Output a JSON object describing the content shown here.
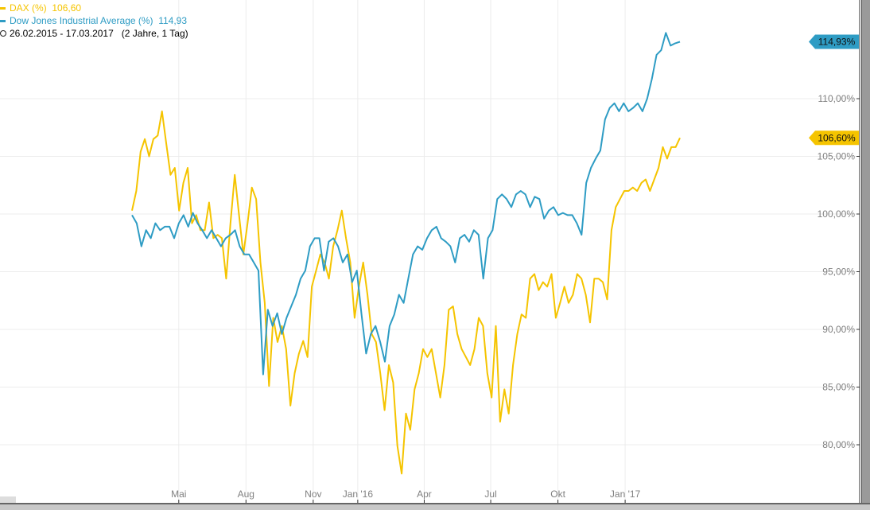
{
  "legend": {
    "dax_label": "DAX (%)",
    "dax_value": "106,60",
    "dow_label": "Dow Jones Industrial Average (%)",
    "dow_value": "114,93",
    "period": "26.02.2015 - 17.03.2017",
    "duration": "(2 Jahre, 1 Tag)"
  },
  "colors": {
    "dax": "#f5c400",
    "dow": "#2e9cc4",
    "grid": "#ececec",
    "axis_text": "#808080"
  },
  "chart_data": {
    "type": "line",
    "x_start": "2015-02-26",
    "x_end": "2017-03-17",
    "ylim": [
      75,
      118.5
    ],
    "grid": true,
    "legend_placement": "top-left",
    "x_ticks": [
      {
        "date": "2015-05-01",
        "label": "Mai"
      },
      {
        "date": "2015-08-01",
        "label": "Aug"
      },
      {
        "date": "2015-11-01",
        "label": "Nov"
      },
      {
        "date": "2016-01-01",
        "label": "Jan '16"
      },
      {
        "date": "2016-04-01",
        "label": "Apr"
      },
      {
        "date": "2016-07-01",
        "label": "Jul"
      },
      {
        "date": "2016-10-01",
        "label": "Okt"
      },
      {
        "date": "2017-01-01",
        "label": "Jan '17"
      }
    ],
    "y_ticks": [
      {
        "value": 80,
        "label": "80,00%"
      },
      {
        "value": 85,
        "label": "85,00%"
      },
      {
        "value": 90,
        "label": "90,00%"
      },
      {
        "value": 95,
        "label": "95,00%"
      },
      {
        "value": 100,
        "label": "100,00%"
      },
      {
        "value": 105,
        "label": "105,00%"
      },
      {
        "value": 110,
        "label": "110,00%"
      }
    ],
    "series": [
      {
        "name": "DAX (%)",
        "color": "#f5c400",
        "last_label": "106,60%",
        "values": [
          100.3,
          102,
          105.4,
          106.5,
          105,
          106.5,
          106.8,
          108.9,
          106.1,
          103.4,
          104,
          100.3,
          102.7,
          104,
          99.2,
          99.9,
          98.6,
          98.6,
          101,
          97.9,
          98.2,
          97.9,
          94.4,
          99.2,
          103.4,
          99.9,
          96.5,
          99.2,
          102.3,
          101.3,
          95.8,
          92.3,
          85.1,
          91,
          88.9,
          90.3,
          88.3,
          83.4,
          86.2,
          87.9,
          89,
          87.6,
          93.7,
          95.1,
          96.5,
          95.8,
          94.4,
          97.2,
          98.6,
          100.3,
          97.9,
          95.8,
          91,
          93.7,
          95.8,
          93,
          89.6,
          88.9,
          86.2,
          83,
          86.9,
          85.4,
          79.9,
          77.5,
          82.7,
          81.3,
          84.8,
          86.2,
          88.3,
          87.6,
          88.3,
          86.2,
          84.1,
          86.9,
          91.7,
          92,
          89.6,
          88.3,
          87.6,
          86.9,
          88.3,
          91,
          90.3,
          86.2,
          84.1,
          90.3,
          82,
          84.8,
          82.7,
          86.9,
          89.6,
          91.3,
          91,
          94.4,
          94.8,
          93.4,
          94.1,
          93.7,
          94.8,
          91,
          92.3,
          93.7,
          92.3,
          93,
          94.8,
          94.4,
          93,
          90.6,
          94.4,
          94.4,
          94.1,
          92.6,
          98.6,
          100.6,
          101.3,
          102,
          102,
          102.3,
          102,
          102.7,
          103,
          102,
          103,
          104,
          105.8,
          104.8,
          105.8,
          105.8,
          106.6
        ]
      },
      {
        "name": "Dow Jones Industrial Average (%)",
        "color": "#2e9cc4",
        "last_label": "114,93%",
        "values": [
          99.9,
          99.2,
          97.2,
          98.6,
          97.9,
          99.2,
          98.6,
          98.9,
          98.9,
          97.9,
          99.2,
          99.9,
          98.9,
          100.1,
          99.2,
          98.6,
          97.9,
          98.6,
          97.9,
          97.2,
          97.9,
          98.2,
          98.6,
          97.2,
          96.5,
          96.5,
          95.8,
          95.1,
          86.1,
          91.7,
          90.3,
          91.4,
          89.6,
          91,
          92,
          93,
          94.4,
          95.1,
          97.2,
          97.9,
          97.9,
          95.1,
          97.6,
          97.9,
          97.2,
          95.8,
          96.5,
          94.1,
          95.1,
          91.3,
          87.9,
          89.6,
          90.3,
          88.9,
          87.2,
          90.3,
          91.3,
          93,
          92.3,
          94.4,
          96.5,
          97.2,
          96.9,
          97.9,
          98.6,
          98.9,
          97.9,
          97.6,
          97.2,
          95.8,
          97.9,
          98.2,
          97.6,
          98.6,
          98.2,
          94.4,
          97.9,
          98.6,
          101.3,
          101.7,
          101.3,
          100.6,
          101.7,
          102,
          101.7,
          100.6,
          101.5,
          101.3,
          99.6,
          100.3,
          100.6,
          99.9,
          100.1,
          99.9,
          99.9,
          99.2,
          98.2,
          102.7,
          104,
          104.8,
          105.5,
          108.2,
          109.2,
          109.6,
          108.9,
          109.6,
          108.9,
          109.2,
          109.6,
          108.9,
          110,
          111.7,
          113.8,
          114.2,
          115.7,
          114.6,
          114.8,
          114.93
        ]
      }
    ]
  }
}
